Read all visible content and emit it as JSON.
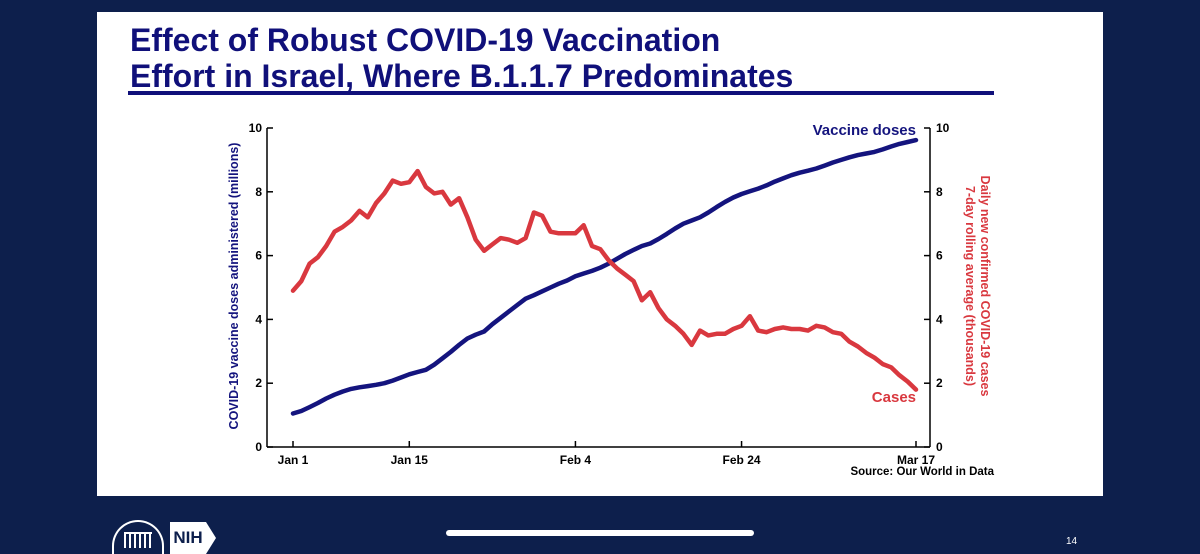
{
  "slide": {
    "title_line1": "Effect of Robust COVID-19 Vaccination",
    "title_line2": "Effort in Israel, Where B.1.1.7 Predominates",
    "page_number": "14"
  },
  "logos": {
    "nih": "NIH"
  },
  "colors": {
    "background": "#0d1f4c",
    "title": "#10107a",
    "vaccine": "#14147e",
    "cases": "#d9383f"
  },
  "chart_data": {
    "type": "line",
    "xlabel": "",
    "ylabel_left": "COVID-19 vaccine doses administered (millions)",
    "ylabel_right_line1": "Daily new confirmed COVID-19 cases",
    "ylabel_right_line2": "7-day rolling average (thousands)",
    "ylim_left": [
      0,
      10
    ],
    "ylim_right": [
      0,
      10
    ],
    "yticks_left": [
      "0",
      "2",
      "4",
      "6",
      "8",
      "10"
    ],
    "yticks_right": [
      "0",
      "2",
      "4",
      "6",
      "8",
      "10"
    ],
    "x_day_range": [
      0,
      75
    ],
    "xticks": [
      {
        "label": "Jan 1",
        "day": 0
      },
      {
        "label": "Jan 15",
        "day": 14
      },
      {
        "label": "Feb 4",
        "day": 34
      },
      {
        "label": "Feb 24",
        "day": 54
      },
      {
        "label": "Mar 17",
        "day": 75
      }
    ],
    "source": "Source: Our World in Data",
    "grid": false,
    "series": [
      {
        "name": "Vaccine doses",
        "axis": "left",
        "x": [
          0,
          1,
          2,
          3,
          4,
          5,
          6,
          7,
          8,
          9,
          10,
          11,
          12,
          13,
          14,
          15,
          16,
          17,
          18,
          19,
          20,
          21,
          22,
          23,
          24,
          25,
          26,
          27,
          28,
          29,
          30,
          31,
          32,
          33,
          34,
          35,
          36,
          37,
          38,
          39,
          40,
          41,
          42,
          43,
          44,
          45,
          46,
          47,
          48,
          49,
          50,
          51,
          52,
          53,
          54,
          55,
          56,
          57,
          58,
          59,
          60,
          61,
          62,
          63,
          64,
          65,
          66,
          67,
          68,
          69,
          70,
          71,
          72,
          73,
          74,
          75
        ],
        "values": [
          1.05,
          1.13,
          1.25,
          1.38,
          1.52,
          1.64,
          1.74,
          1.82,
          1.87,
          1.91,
          1.95,
          2.0,
          2.08,
          2.18,
          2.28,
          2.35,
          2.42,
          2.58,
          2.78,
          2.98,
          3.2,
          3.4,
          3.52,
          3.62,
          3.85,
          4.05,
          4.25,
          4.45,
          4.65,
          4.76,
          4.88,
          5.0,
          5.12,
          5.22,
          5.35,
          5.44,
          5.52,
          5.62,
          5.75,
          5.9,
          6.05,
          6.18,
          6.3,
          6.38,
          6.52,
          6.68,
          6.85,
          7.0,
          7.1,
          7.2,
          7.35,
          7.52,
          7.68,
          7.82,
          7.93,
          8.02,
          8.1,
          8.2,
          8.32,
          8.42,
          8.52,
          8.6,
          8.66,
          8.73,
          8.82,
          8.92,
          9.0,
          9.08,
          9.15,
          9.2,
          9.25,
          9.33,
          9.42,
          9.5,
          9.56,
          9.62
        ]
      },
      {
        "name": "Cases",
        "axis": "right",
        "x": [
          0,
          1,
          2,
          3,
          4,
          5,
          6,
          7,
          8,
          9,
          10,
          11,
          12,
          13,
          14,
          15,
          16,
          17,
          18,
          19,
          20,
          21,
          22,
          23,
          24,
          25,
          26,
          27,
          28,
          29,
          30,
          31,
          32,
          33,
          34,
          35,
          36,
          37,
          38,
          39,
          40,
          41,
          42,
          43,
          44,
          45,
          46,
          47,
          48,
          49,
          50,
          51,
          52,
          53,
          54,
          55,
          56,
          57,
          58,
          59,
          60,
          61,
          62,
          63,
          64,
          65,
          66,
          67,
          68,
          69,
          70,
          71,
          72,
          73,
          74,
          75
        ],
        "values": [
          4.9,
          5.2,
          5.75,
          5.95,
          6.3,
          6.75,
          6.9,
          7.1,
          7.4,
          7.2,
          7.65,
          7.95,
          8.35,
          8.25,
          8.3,
          8.65,
          8.15,
          7.95,
          8.0,
          7.6,
          7.8,
          7.2,
          6.5,
          6.15,
          6.35,
          6.55,
          6.5,
          6.4,
          6.55,
          7.35,
          7.25,
          6.75,
          6.7,
          6.7,
          6.7,
          6.95,
          6.3,
          6.2,
          5.85,
          5.6,
          5.4,
          5.2,
          4.6,
          4.85,
          4.35,
          4.0,
          3.8,
          3.55,
          3.2,
          3.65,
          3.5,
          3.55,
          3.55,
          3.7,
          3.8,
          4.1,
          3.65,
          3.6,
          3.7,
          3.75,
          3.7,
          3.7,
          3.65,
          3.8,
          3.75,
          3.6,
          3.55,
          3.3,
          3.15,
          2.95,
          2.8,
          2.6,
          2.5,
          2.25,
          2.05,
          1.8
        ]
      }
    ]
  }
}
